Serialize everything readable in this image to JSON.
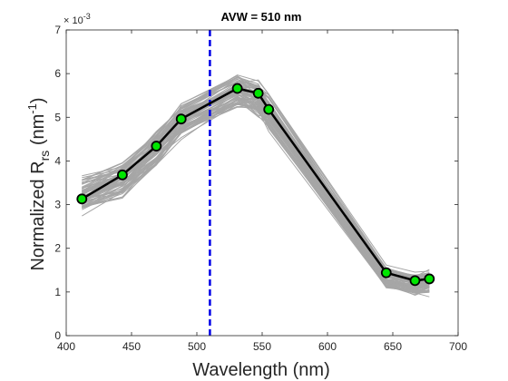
{
  "chart_data": {
    "type": "line",
    "title": "AVW = 510 nm",
    "xlabel": "Wavelength (nm)",
    "ylabel": {
      "main": "Normalized R",
      "sub": "rs",
      "unit_open": "  (nm",
      "unit_sup": "-1",
      "unit_close": ")"
    },
    "y_multiplier": {
      "base": "× 10",
      "exponent": "-3"
    },
    "xlim": [
      400,
      700
    ],
    "ylim": [
      0,
      7
    ],
    "xticks": [
      400,
      450,
      500,
      550,
      600,
      650,
      700
    ],
    "yticks": [
      0,
      1,
      2,
      3,
      4,
      5,
      6,
      7
    ],
    "grid": false,
    "reference_line": {
      "x": 510,
      "style": "dashed",
      "color": "#0000e6"
    },
    "highlight_series": {
      "x": [
        412,
        443,
        469,
        488,
        531,
        547,
        555,
        645,
        667,
        678
      ],
      "y": [
        3.13,
        3.68,
        4.34,
        4.96,
        5.66,
        5.55,
        5.18,
        1.44,
        1.26,
        1.3
      ],
      "color": "#000000",
      "marker_color": "#00e600"
    },
    "spectra": {
      "x": [
        412,
        443,
        469,
        488,
        531,
        547,
        555,
        645,
        667,
        678
      ],
      "base": [
        3.2,
        3.55,
        4.25,
        4.9,
        5.55,
        5.4,
        5.1,
        1.3,
        1.15,
        1.2
      ],
      "spread_blue": 0.6,
      "spread_red": 0.35,
      "count": 70,
      "color": "#a6a6a6"
    }
  }
}
